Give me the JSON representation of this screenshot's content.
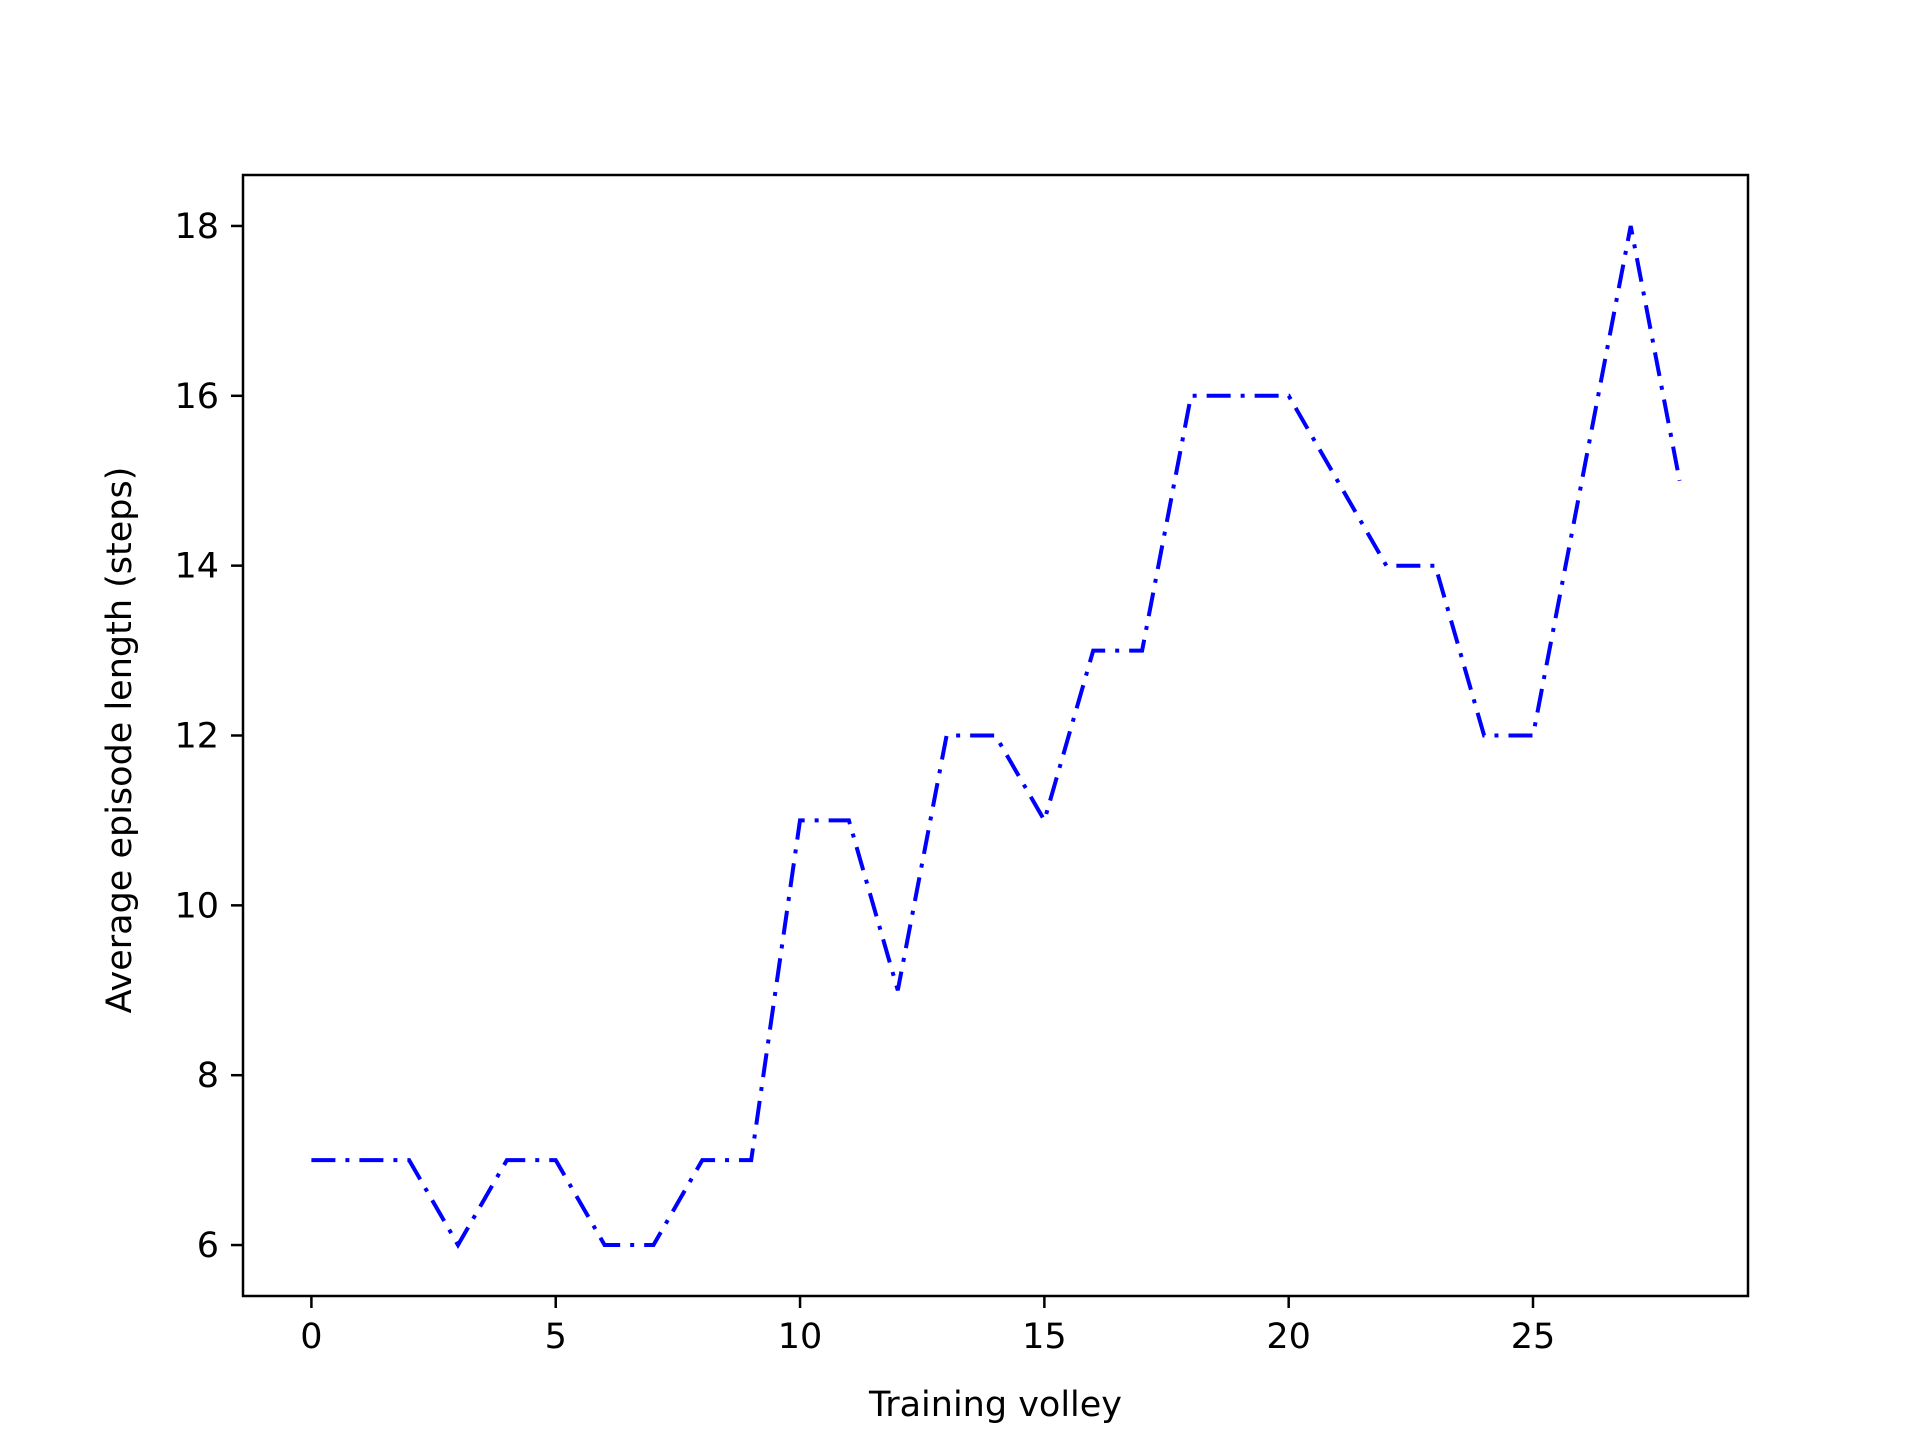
{
  "chart_data": {
    "type": "line",
    "title": "",
    "xlabel": "Training volley",
    "ylabel": "Average episode length (steps)",
    "xlim": [
      -1.4,
      29.4
    ],
    "ylim": [
      5.4,
      18.6
    ],
    "x_ticks": [
      0,
      5,
      10,
      15,
      20,
      25
    ],
    "y_ticks": [
      6,
      8,
      10,
      12,
      14,
      16,
      18
    ],
    "grid": false,
    "legend": "none",
    "series": [
      {
        "color": "#0000ff",
        "line_style": "dash-dot",
        "x": [
          0,
          1,
          2,
          3,
          4,
          5,
          6,
          7,
          8,
          9,
          10,
          11,
          12,
          13,
          14,
          15,
          16,
          17,
          18,
          19,
          20,
          21,
          22,
          23,
          24,
          25,
          26,
          27,
          28
        ],
        "values": [
          7,
          7,
          7,
          6,
          7,
          7,
          6,
          6,
          7,
          7,
          11,
          11,
          9,
          12,
          12,
          11,
          13,
          13,
          16,
          16,
          16,
          15,
          14,
          14,
          12,
          12,
          15,
          18,
          15
        ]
      }
    ]
  }
}
